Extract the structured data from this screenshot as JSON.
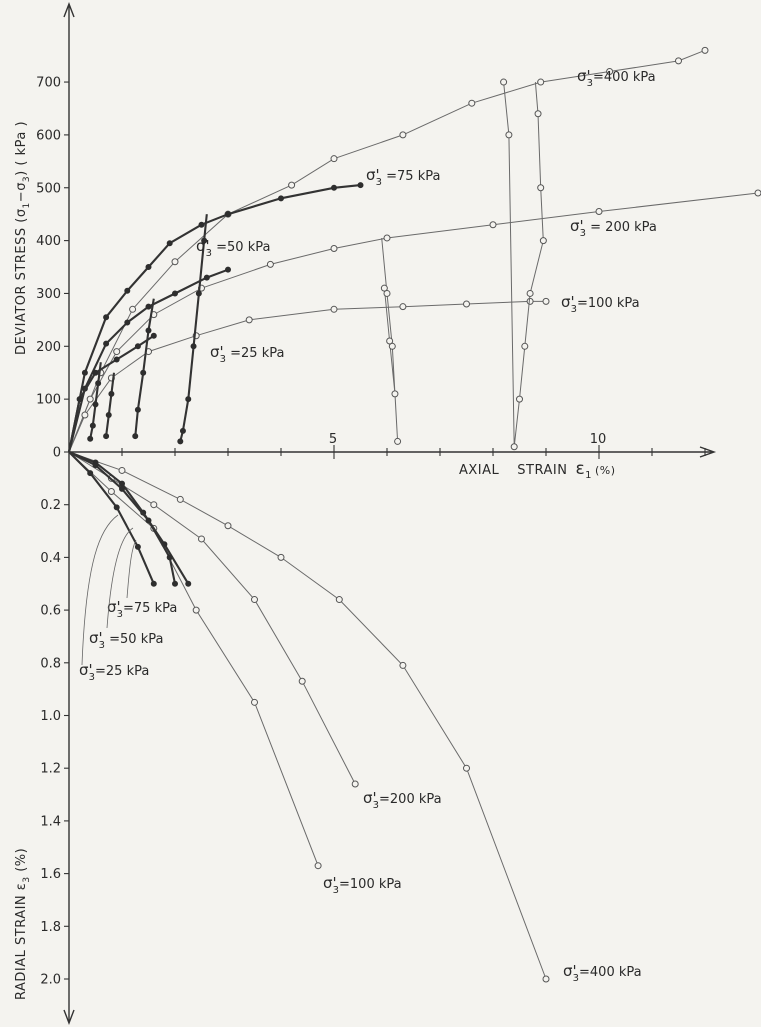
{
  "chart_data": {
    "type": "line",
    "upper": {
      "xlabel_words": [
        "AXIAL",
        "STRAIN"
      ],
      "xlabel_symbol": "ε",
      "xlabel_sub": "1",
      "xlabel_unit": "(%)",
      "ylabel_prefix": "DEVIATOR   STRESS  (σ",
      "ylabel_sub1": "1",
      "ylabel_mid": "−σ",
      "ylabel_sub2": "3",
      "ylabel_suffix": ")  ( kPa )",
      "xlim": [
        0,
        13.5
      ],
      "ylim": [
        0,
        770
      ],
      "x_ticks": [
        {
          "v": 5,
          "label": "5"
        },
        {
          "v": 10,
          "label": "10"
        }
      ],
      "y_ticks": [
        {
          "v": 0,
          "label": "0"
        },
        {
          "v": 100,
          "label": "100"
        },
        {
          "v": 200,
          "label": "200"
        },
        {
          "v": 300,
          "label": "300"
        },
        {
          "v": 400,
          "label": "400"
        },
        {
          "v": 500,
          "label": "500"
        },
        {
          "v": 600,
          "label": "600"
        },
        {
          "v": 700,
          "label": "700"
        }
      ],
      "series": [
        {
          "name": "σ'3 = 400 kPa",
          "marker": "open",
          "x": [
            0,
            0.6,
            1.2,
            2.0,
            3.0,
            4.2,
            5.0,
            6.3,
            7.6,
            8.9,
            10.2,
            11.5,
            12.0
          ],
          "y": [
            0,
            150,
            270,
            360,
            450,
            505,
            555,
            600,
            660,
            700,
            720,
            740,
            760
          ],
          "label_parts": [
            "σ'",
            "3",
            "=400 kPa"
          ]
        },
        {
          "name": "σ'3 = 200 kPa",
          "marker": "open",
          "x": [
            0,
            0.4,
            0.9,
            1.6,
            2.5,
            3.8,
            5.0,
            6.0,
            8.0,
            10.0,
            13.0
          ],
          "y": [
            0,
            100,
            190,
            260,
            310,
            355,
            385,
            405,
            430,
            455,
            490
          ],
          "label_parts": [
            "σ'",
            "3",
            " = 200 kPa"
          ]
        },
        {
          "name": "σ'3 = 100 kPa",
          "marker": "open",
          "x": [
            0,
            0.3,
            0.8,
            1.5,
            2.4,
            3.4,
            5.0,
            6.3,
            7.5,
            8.7,
            9.0
          ],
          "y": [
            0,
            70,
            140,
            190,
            220,
            250,
            270,
            275,
            280,
            285,
            285
          ],
          "label_parts": [
            "σ'",
            "3",
            "=100 kPa"
          ]
        },
        {
          "name": "σ'3 = 75 kPa",
          "marker": "filled",
          "x": [
            0,
            0.3,
            0.7,
            1.1,
            1.5,
            1.9,
            2.5,
            3.0,
            4.0,
            5.0,
            5.5
          ],
          "y": [
            0,
            150,
            255,
            305,
            350,
            395,
            430,
            450,
            480,
            500,
            505
          ],
          "label_parts": [
            "σ'",
            "3",
            " =75 kPa"
          ]
        },
        {
          "name": "σ'3 = 50 kPa",
          "marker": "filled",
          "x": [
            0,
            0.3,
            0.7,
            1.1,
            1.5,
            2.0,
            2.6,
            3.0
          ],
          "y": [
            0,
            120,
            205,
            245,
            275,
            300,
            330,
            345
          ],
          "label_parts": [
            "σ'",
            "3",
            " =50 kPa"
          ]
        },
        {
          "name": "σ'3 = 25 kPa",
          "marker": "filled",
          "x": [
            0,
            0.2,
            0.5,
            0.9,
            1.3,
            1.6
          ],
          "y": [
            0,
            100,
            150,
            175,
            200,
            220
          ],
          "label_parts": [
            "σ'",
            "3",
            " =25 kPa"
          ]
        }
      ],
      "unload_reload_loops": [
        {
          "marker": "open",
          "x": [
            5.9,
            6.0,
            6.1,
            6.2,
            6.15,
            6.05,
            5.95
          ],
          "y": [
            405,
            300,
            200,
            20,
            110,
            210,
            310
          ]
        },
        {
          "marker": "open",
          "x": [
            8.8,
            8.85,
            8.9,
            8.95,
            8.7,
            8.6,
            8.5,
            8.4,
            8.3,
            8.2
          ],
          "y": [
            700,
            640,
            500,
            400,
            300,
            200,
            100,
            10,
            600,
            700
          ]
        },
        {
          "marker": "filled",
          "x": [
            2.6,
            2.55,
            2.45,
            2.35,
            2.25,
            2.15,
            2.1
          ],
          "y": [
            450,
            400,
            300,
            200,
            100,
            40,
            20
          ]
        },
        {
          "marker": "filled",
          "x": [
            1.6,
            1.5,
            1.4,
            1.3,
            1.25
          ],
          "y": [
            290,
            230,
            150,
            80,
            30
          ]
        },
        {
          "marker": "filled",
          "x": [
            0.6,
            0.55,
            0.5,
            0.45,
            0.4
          ],
          "y": [
            170,
            130,
            90,
            50,
            25
          ]
        },
        {
          "marker": "filled",
          "x": [
            0.85,
            0.8,
            0.75,
            0.7
          ],
          "y": [
            150,
            110,
            70,
            30
          ]
        }
      ]
    },
    "lower": {
      "ylabel_prefix": "RADIAL   STRAIN  ε",
      "ylabel_sub": "3",
      "ylabel_suffix": " (%)",
      "ylim": [
        0,
        2.2
      ],
      "y_ticks": [
        {
          "v": 0.2,
          "label": "0.2"
        },
        {
          "v": 0.4,
          "label": "0.4"
        },
        {
          "v": 0.6,
          "label": "0.6"
        },
        {
          "v": 0.8,
          "label": "0.8"
        },
        {
          "v": 1.0,
          "label": "1.0"
        },
        {
          "v": 1.2,
          "label": "1.2"
        },
        {
          "v": 1.4,
          "label": "1.4"
        },
        {
          "v": 1.6,
          "label": "1.6"
        },
        {
          "v": 1.8,
          "label": "1.8"
        },
        {
          "v": 2.0,
          "label": "2.0"
        }
      ],
      "series": [
        {
          "name": "σ'3 = 400 kPa",
          "marker": "open",
          "x": [
            0,
            1.0,
            2.1,
            3.0,
            4.0,
            5.1,
            6.3,
            7.5,
            9.0
          ],
          "y": [
            0,
            0.07,
            0.18,
            0.28,
            0.4,
            0.56,
            0.81,
            1.2,
            2.0
          ],
          "label_parts": [
            "σ'",
            "3",
            "=400 kPa"
          ]
        },
        {
          "name": "σ'3 = 200 kPa",
          "marker": "open",
          "x": [
            0,
            0.8,
            1.6,
            2.5,
            3.5,
            4.4,
            5.4
          ],
          "y": [
            0,
            0.1,
            0.2,
            0.33,
            0.56,
            0.87,
            1.26
          ],
          "label_parts": [
            "σ'",
            "3",
            "=200 kPa"
          ]
        },
        {
          "name": "σ'3 = 100 kPa",
          "marker": "open",
          "x": [
            0,
            0.8,
            1.6,
            2.4,
            3.5,
            4.7
          ],
          "y": [
            0,
            0.15,
            0.29,
            0.6,
            0.95,
            1.57
          ],
          "label_parts": [
            "σ'",
            "3",
            "=100 kPa"
          ]
        },
        {
          "name": "σ'3 = 75 kPa",
          "marker": "filled",
          "x": [
            0,
            0.5,
            1.0,
            1.4,
            1.8,
            2.25
          ],
          "y": [
            0,
            0.04,
            0.12,
            0.23,
            0.35,
            0.5
          ],
          "label_parts": [
            "σ'",
            "3",
            "=75 kPa"
          ]
        },
        {
          "name": "σ'3 = 50 kPa",
          "marker": "filled",
          "x": [
            0,
            0.5,
            1.0,
            1.5,
            1.9,
            2.0
          ],
          "y": [
            0,
            0.05,
            0.14,
            0.26,
            0.4,
            0.5
          ],
          "label_parts": [
            "σ'",
            "3",
            " =50 kPa"
          ]
        },
        {
          "name": "σ'3 = 25 kPa",
          "marker": "filled",
          "x": [
            0,
            0.4,
            0.9,
            1.3,
            1.6
          ],
          "y": [
            0,
            0.08,
            0.21,
            0.36,
            0.5
          ],
          "label_parts": [
            "σ'",
            "3",
            "=25 kPa"
          ]
        }
      ]
    }
  }
}
